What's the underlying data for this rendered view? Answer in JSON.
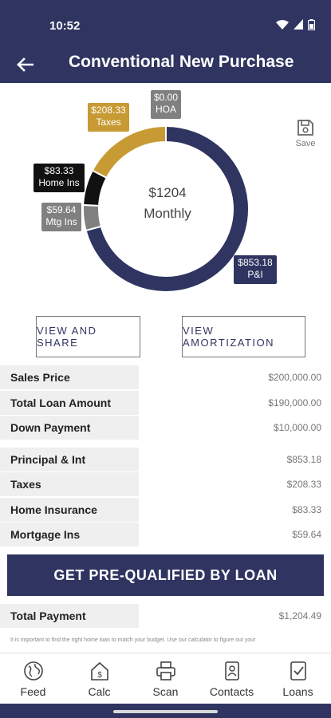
{
  "status": {
    "time": "10:52"
  },
  "header": {
    "title": "Conventional New Purchase"
  },
  "chart_data": {
    "type": "pie",
    "center_amount": "$1204",
    "center_label": "Monthly",
    "slices": [
      {
        "label": "P&I",
        "amount": "$853.18",
        "value": 853.18,
        "color": "#2f3560"
      },
      {
        "label": "Mtg Ins",
        "amount": "$59.64",
        "value": 59.64,
        "color": "#808080"
      },
      {
        "label": "Home Ins",
        "amount": "$83.33",
        "value": 83.33,
        "color": "#111111"
      },
      {
        "label": "Taxes",
        "amount": "$208.33",
        "value": 208.33,
        "color": "#c79a33"
      },
      {
        "label": "HOA",
        "amount": "$0.00",
        "value": 0,
        "color": "#808080"
      }
    ]
  },
  "save": {
    "label": "Save"
  },
  "buttons": {
    "view_share": "VIEW AND SHARE",
    "view_amortization": "VIEW AMORTIZATION"
  },
  "loan_rows": [
    {
      "label": "Sales Price",
      "value": "$200,000.00"
    },
    {
      "label": "Total Loan Amount",
      "value": "$190,000.00"
    },
    {
      "label": "Down Payment",
      "value": "$10,000.00"
    }
  ],
  "payment_rows": [
    {
      "label": "Principal & Int",
      "value": "$853.18"
    },
    {
      "label": "Taxes",
      "value": "$208.33"
    },
    {
      "label": "Home Insurance",
      "value": "$83.33"
    },
    {
      "label": "Mortgage Ins",
      "value": "$59.64"
    }
  ],
  "cta": {
    "label": "GET PRE-QUALIFIED BY LOAN"
  },
  "total": {
    "label": "Total Payment",
    "value": "$1,204.49"
  },
  "disclaimer": "It is important to find the right home loan to match your budget. Use our calculator to figure out your",
  "nav": [
    {
      "label": "Feed",
      "icon": "globe-icon"
    },
    {
      "label": "Calc",
      "icon": "calculator-house-icon"
    },
    {
      "label": "Scan",
      "icon": "printer-icon"
    },
    {
      "label": "Contacts",
      "icon": "contacts-icon"
    },
    {
      "label": "Loans",
      "icon": "document-check-icon"
    }
  ],
  "colors": {
    "primary": "#2f3560",
    "taxes": "#c79a33",
    "gray": "#808080"
  }
}
